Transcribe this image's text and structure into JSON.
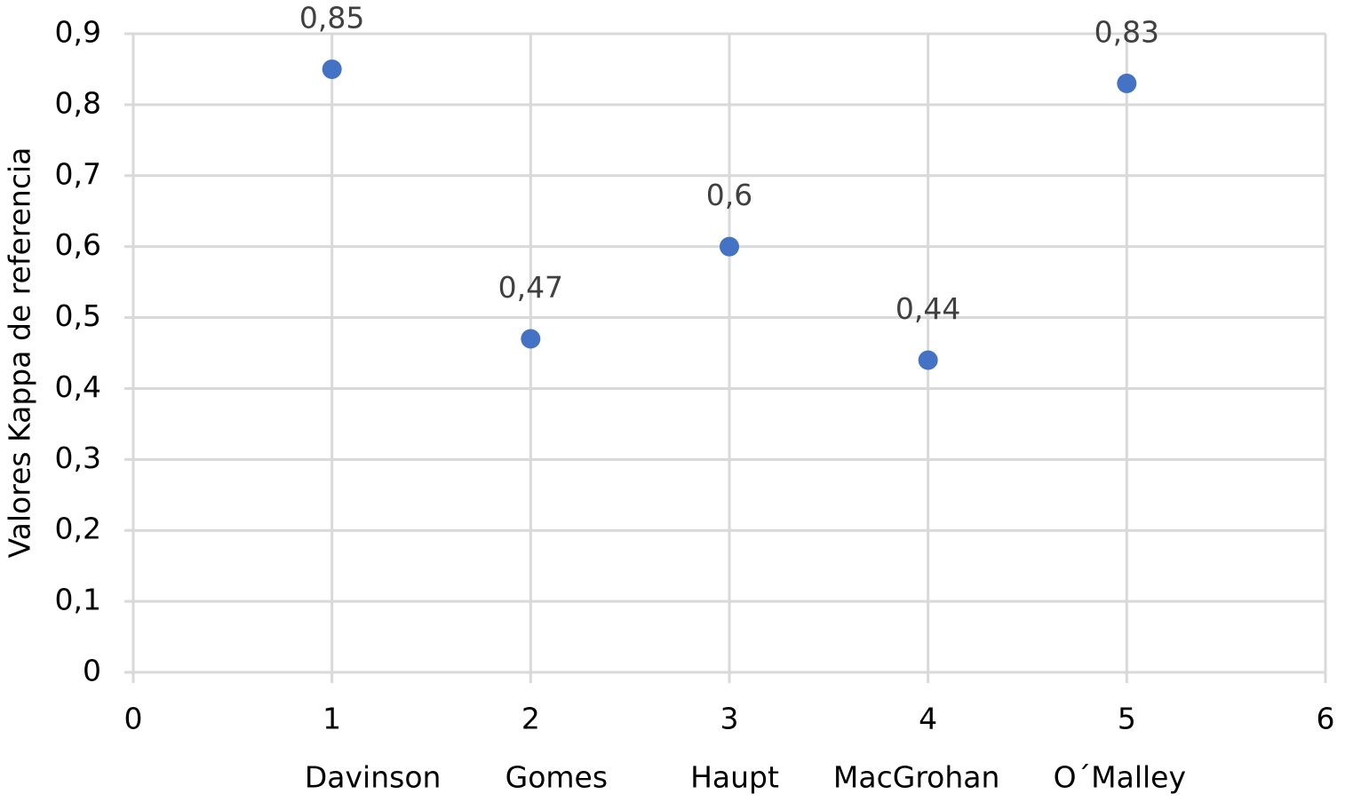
{
  "chart_data": {
    "type": "scatter",
    "y_label": "Valores Kappa de referencia",
    "x": [
      1,
      2,
      3,
      4,
      5
    ],
    "values": [
      0.85,
      0.47,
      0.6,
      0.44,
      0.83
    ],
    "value_labels": [
      "0,85",
      "0,47",
      "0,6",
      "0,44",
      "0,83"
    ],
    "x_labels": [
      "Davinson",
      "Gomes",
      "Haupt",
      "MacGrohan",
      "O´Malley"
    ],
    "color": "#4472c4",
    "xlim": [
      0,
      6
    ],
    "xticks": [
      0,
      1,
      2,
      3,
      4,
      5,
      6
    ],
    "ylim": [
      0,
      0.9
    ],
    "yticks": [
      0,
      {
        "value": 0.1,
        "label": "0,1"
      },
      {
        "value": 0.2,
        "label": "0,2"
      },
      {
        "value": 0.3,
        "label": "0,3"
      },
      {
        "value": 0.4,
        "label": "0,4"
      },
      {
        "value": 0.5,
        "label": "0,5"
      },
      {
        "value": 0.6,
        "label": "0,6"
      },
      {
        "value": 0.7,
        "label": "0,7"
      },
      {
        "value": 0.8,
        "label": "0,8"
      },
      {
        "value": 0.9,
        "label": "0,9"
      }
    ],
    "grid": true
  }
}
